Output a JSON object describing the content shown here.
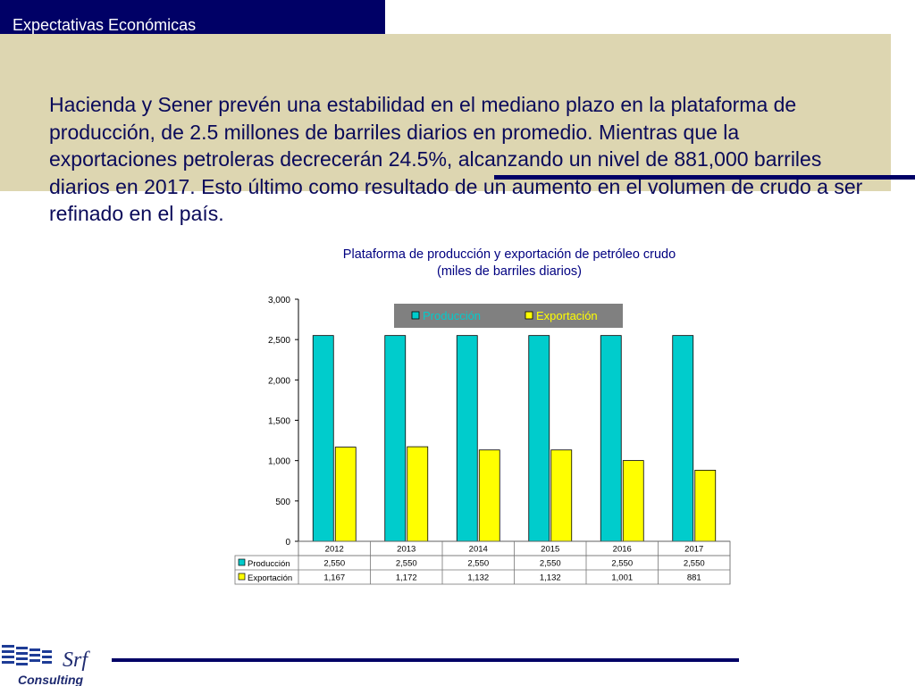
{
  "header": {
    "title": "Expectativas Económicas"
  },
  "body_text": "Hacienda y Sener prevén una estabilidad en el mediano plazo en la plataforma de producción, de 2.5 millones de barriles diarios en promedio. Mientras que la exportaciones petroleras decrecerán 24.5%, alcanzando un nivel de 881,000 barriles diarios en 2017. Esto último como resultado de un aumento en el volumen de crudo a ser refinado en el país.",
  "chart_data": {
    "type": "bar",
    "title": "Plataforma de producción y exportación de petróleo crudo",
    "subtitle": "(miles de barriles diarios)",
    "categories": [
      "2012",
      "2013",
      "2014",
      "2015",
      "2016",
      "2017"
    ],
    "series": [
      {
        "name": "Producción",
        "values": [
          2550,
          2550,
          2550,
          2550,
          2550,
          2550
        ],
        "labels": [
          "2,550",
          "2,550",
          "2,550",
          "2,550",
          "2,550",
          "2,550"
        ],
        "color": "#00cccc"
      },
      {
        "name": "Exportación",
        "values": [
          1167,
          1172,
          1132,
          1132,
          1001,
          881
        ],
        "labels": [
          "1,167",
          "1,172",
          "1,132",
          "1,132",
          "1,001",
          "881"
        ],
        "color": "#ffff00"
      }
    ],
    "ylim": [
      0,
      3000
    ],
    "yticks": [
      0,
      500,
      1000,
      1500,
      2000,
      2500,
      3000
    ],
    "ytick_labels": [
      "0",
      "500",
      "1,000",
      "1,500",
      "2,000",
      "2,500",
      "3,000"
    ],
    "grid": false,
    "legend": "top-center",
    "data_table": true
  },
  "colors": {
    "title_bar": "#000066",
    "banner": "#ddd6b1",
    "text": "#0a0a5a",
    "legend_bg": "#808080"
  },
  "logo": {
    "text": "Srf",
    "subtext": "Consulting"
  }
}
